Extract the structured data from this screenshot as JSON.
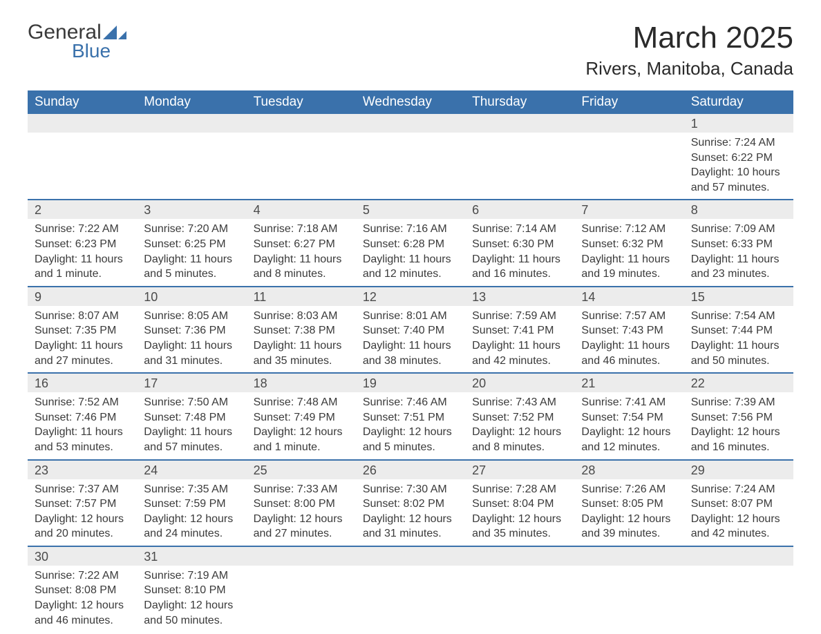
{
  "brand": {
    "word1": "General",
    "word2": "Blue",
    "accent": "#3a71ab"
  },
  "title": "March 2025",
  "location": "Rivers, Manitoba, Canada",
  "colors": {
    "header_bg": "#3a71ab",
    "header_fg": "#ffffff",
    "daynum_bg": "#ececec",
    "row_divider": "#3a71ab",
    "text": "#3a3a3a"
  },
  "typography": {
    "title_fontsize": 44,
    "location_fontsize": 26,
    "header_fontsize": 19,
    "daynum_fontsize": 18,
    "body_fontsize": 16
  },
  "day_labels": [
    "Sunday",
    "Monday",
    "Tuesday",
    "Wednesday",
    "Thursday",
    "Friday",
    "Saturday"
  ],
  "weeks": [
    [
      null,
      null,
      null,
      null,
      null,
      null,
      {
        "n": "1",
        "sunrise": "7:24 AM",
        "sunset": "6:22 PM",
        "daylight": "10 hours and 57 minutes."
      }
    ],
    [
      {
        "n": "2",
        "sunrise": "7:22 AM",
        "sunset": "6:23 PM",
        "daylight": "11 hours and 1 minute."
      },
      {
        "n": "3",
        "sunrise": "7:20 AM",
        "sunset": "6:25 PM",
        "daylight": "11 hours and 5 minutes."
      },
      {
        "n": "4",
        "sunrise": "7:18 AM",
        "sunset": "6:27 PM",
        "daylight": "11 hours and 8 minutes."
      },
      {
        "n": "5",
        "sunrise": "7:16 AM",
        "sunset": "6:28 PM",
        "daylight": "11 hours and 12 minutes."
      },
      {
        "n": "6",
        "sunrise": "7:14 AM",
        "sunset": "6:30 PM",
        "daylight": "11 hours and 16 minutes."
      },
      {
        "n": "7",
        "sunrise": "7:12 AM",
        "sunset": "6:32 PM",
        "daylight": "11 hours and 19 minutes."
      },
      {
        "n": "8",
        "sunrise": "7:09 AM",
        "sunset": "6:33 PM",
        "daylight": "11 hours and 23 minutes."
      }
    ],
    [
      {
        "n": "9",
        "sunrise": "8:07 AM",
        "sunset": "7:35 PM",
        "daylight": "11 hours and 27 minutes."
      },
      {
        "n": "10",
        "sunrise": "8:05 AM",
        "sunset": "7:36 PM",
        "daylight": "11 hours and 31 minutes."
      },
      {
        "n": "11",
        "sunrise": "8:03 AM",
        "sunset": "7:38 PM",
        "daylight": "11 hours and 35 minutes."
      },
      {
        "n": "12",
        "sunrise": "8:01 AM",
        "sunset": "7:40 PM",
        "daylight": "11 hours and 38 minutes."
      },
      {
        "n": "13",
        "sunrise": "7:59 AM",
        "sunset": "7:41 PM",
        "daylight": "11 hours and 42 minutes."
      },
      {
        "n": "14",
        "sunrise": "7:57 AM",
        "sunset": "7:43 PM",
        "daylight": "11 hours and 46 minutes."
      },
      {
        "n": "15",
        "sunrise": "7:54 AM",
        "sunset": "7:44 PM",
        "daylight": "11 hours and 50 minutes."
      }
    ],
    [
      {
        "n": "16",
        "sunrise": "7:52 AM",
        "sunset": "7:46 PM",
        "daylight": "11 hours and 53 minutes."
      },
      {
        "n": "17",
        "sunrise": "7:50 AM",
        "sunset": "7:48 PM",
        "daylight": "11 hours and 57 minutes."
      },
      {
        "n": "18",
        "sunrise": "7:48 AM",
        "sunset": "7:49 PM",
        "daylight": "12 hours and 1 minute."
      },
      {
        "n": "19",
        "sunrise": "7:46 AM",
        "sunset": "7:51 PM",
        "daylight": "12 hours and 5 minutes."
      },
      {
        "n": "20",
        "sunrise": "7:43 AM",
        "sunset": "7:52 PM",
        "daylight": "12 hours and 8 minutes."
      },
      {
        "n": "21",
        "sunrise": "7:41 AM",
        "sunset": "7:54 PM",
        "daylight": "12 hours and 12 minutes."
      },
      {
        "n": "22",
        "sunrise": "7:39 AM",
        "sunset": "7:56 PM",
        "daylight": "12 hours and 16 minutes."
      }
    ],
    [
      {
        "n": "23",
        "sunrise": "7:37 AM",
        "sunset": "7:57 PM",
        "daylight": "12 hours and 20 minutes."
      },
      {
        "n": "24",
        "sunrise": "7:35 AM",
        "sunset": "7:59 PM",
        "daylight": "12 hours and 24 minutes."
      },
      {
        "n": "25",
        "sunrise": "7:33 AM",
        "sunset": "8:00 PM",
        "daylight": "12 hours and 27 minutes."
      },
      {
        "n": "26",
        "sunrise": "7:30 AM",
        "sunset": "8:02 PM",
        "daylight": "12 hours and 31 minutes."
      },
      {
        "n": "27",
        "sunrise": "7:28 AM",
        "sunset": "8:04 PM",
        "daylight": "12 hours and 35 minutes."
      },
      {
        "n": "28",
        "sunrise": "7:26 AM",
        "sunset": "8:05 PM",
        "daylight": "12 hours and 39 minutes."
      },
      {
        "n": "29",
        "sunrise": "7:24 AM",
        "sunset": "8:07 PM",
        "daylight": "12 hours and 42 minutes."
      }
    ],
    [
      {
        "n": "30",
        "sunrise": "7:22 AM",
        "sunset": "8:08 PM",
        "daylight": "12 hours and 46 minutes."
      },
      {
        "n": "31",
        "sunrise": "7:19 AM",
        "sunset": "8:10 PM",
        "daylight": "12 hours and 50 minutes."
      },
      null,
      null,
      null,
      null,
      null
    ]
  ],
  "labels": {
    "sunrise": "Sunrise: ",
    "sunset": "Sunset: ",
    "daylight": "Daylight: "
  }
}
